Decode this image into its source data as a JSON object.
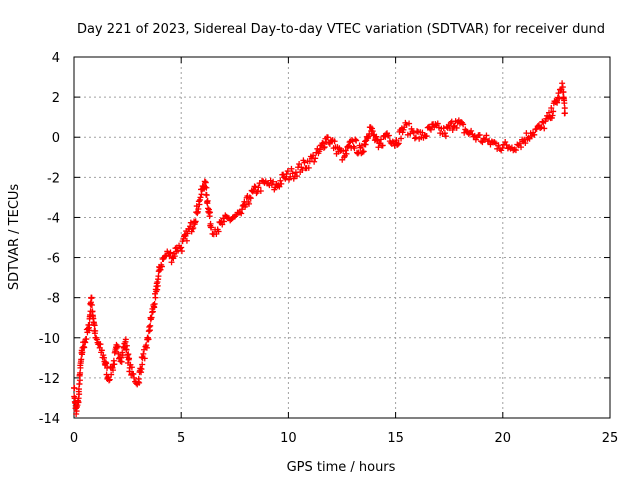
{
  "chart_data": {
    "type": "scatter",
    "title": "Day 221 of 2023, Sidereal Day-to-day VTEC variation (SDTVAR) for receiver dund",
    "xlabel": "GPS time / hours",
    "ylabel": "SDTVAR / TECUs",
    "xlim": [
      0,
      25
    ],
    "ylim": [
      -14,
      4
    ],
    "xticks": [
      0,
      5,
      10,
      15,
      20,
      25
    ],
    "yticks": [
      -14,
      -12,
      -10,
      -8,
      -6,
      -4,
      -2,
      0,
      2,
      4
    ],
    "grid": true,
    "marker": "+",
    "series": [
      {
        "name": "SDTVAR",
        "color": "#ff0000",
        "x": [
          0.0,
          0.1,
          0.2,
          0.3,
          0.4,
          0.5,
          0.7,
          0.8,
          1.0,
          1.2,
          1.4,
          1.6,
          1.8,
          2.0,
          2.2,
          2.4,
          2.6,
          2.8,
          3.0,
          3.2,
          3.4,
          3.6,
          3.8,
          4.0,
          4.2,
          4.4,
          4.6,
          4.8,
          5.0,
          5.3,
          5.6,
          5.9,
          6.1,
          6.4,
          6.7,
          7.0,
          7.4,
          7.8,
          8.2,
          8.6,
          9.0,
          9.4,
          9.8,
          10.2,
          10.6,
          11.0,
          11.4,
          11.8,
          12.2,
          12.6,
          13.0,
          13.4,
          13.8,
          14.2,
          14.6,
          15.0,
          15.4,
          15.8,
          16.2,
          16.8,
          17.3,
          17.8,
          18.3,
          18.8,
          19.3,
          19.8,
          20.3,
          20.8,
          21.3,
          21.8,
          22.2,
          22.5,
          22.8,
          22.9
        ],
        "y": [
          -12.5,
          -13.8,
          -13.2,
          -11.5,
          -10.5,
          -10.2,
          -9.5,
          -8.0,
          -10.0,
          -10.5,
          -11.0,
          -12.0,
          -11.5,
          -10.5,
          -11.0,
          -10.2,
          -11.5,
          -12.0,
          -12.2,
          -11.0,
          -10.5,
          -9.0,
          -8.0,
          -6.5,
          -6.0,
          -5.8,
          -6.0,
          -5.5,
          -5.5,
          -4.8,
          -4.2,
          -3.0,
          -2.2,
          -4.5,
          -4.6,
          -4.2,
          -4.0,
          -3.8,
          -3.0,
          -2.5,
          -2.3,
          -2.5,
          -2.0,
          -1.8,
          -1.5,
          -1.2,
          -0.8,
          0.0,
          -0.5,
          -1.0,
          -0.2,
          -0.8,
          0.5,
          -0.5,
          0.2,
          -0.3,
          0.5,
          0.3,
          0.0,
          0.5,
          0.2,
          0.8,
          0.3,
          0.0,
          -0.2,
          -0.4,
          -0.5,
          -0.3,
          0.2,
          0.5,
          1.0,
          1.8,
          2.5,
          1.2
        ]
      }
    ]
  }
}
